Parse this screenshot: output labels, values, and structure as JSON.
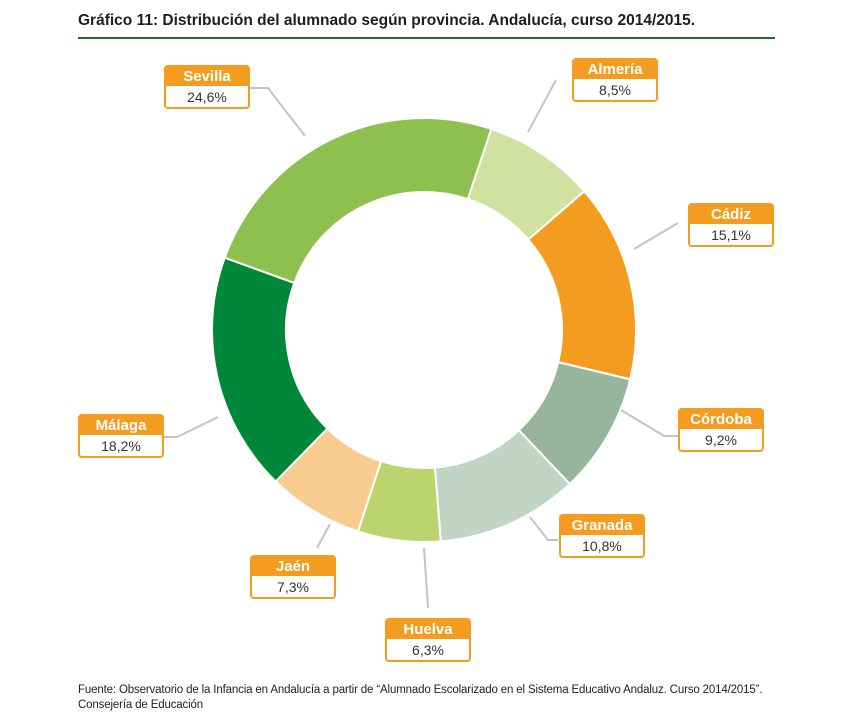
{
  "title": "Gráfico 11: Distribución del alumnado según provincia. Andalucía, curso 2014/2015.",
  "source": {
    "line1": "Fuente: Observatorio de la Infancia en Andalucía a partir de “Alumnado Escolarizado en el Sistema Educativo Andaluz. Curso 2014/2015”.",
    "line2": "Consejería de Educación"
  },
  "chart_data": {
    "type": "pie",
    "style": "donut",
    "unit": "%",
    "legend": "callout-labels",
    "slices": [
      {
        "label": "Almería",
        "value": 8.5,
        "value_label": "8,5%",
        "color": "#d0e1a0"
      },
      {
        "label": "Cádiz",
        "value": 15.1,
        "value_label": "15,1%",
        "color": "#f39c1f"
      },
      {
        "label": "Córdoba",
        "value": 9.2,
        "value_label": "9,2%",
        "color": "#97b59d"
      },
      {
        "label": "Granada",
        "value": 10.8,
        "value_label": "10,8%",
        "color": "#c0d5c6"
      },
      {
        "label": "Huelva",
        "value": 6.3,
        "value_label": "6,3%",
        "color": "#bcd46e"
      },
      {
        "label": "Jaén",
        "value": 7.3,
        "value_label": "7,3%",
        "color": "#f8cc8f"
      },
      {
        "label": "Málaga",
        "value": 18.2,
        "value_label": "18,2%",
        "color": "#00873a"
      },
      {
        "label": "Sevilla",
        "value": 24.6,
        "value_label": "24,6%",
        "color": "#8dc04e"
      }
    ],
    "label_box_color": "#f39c1f",
    "leader_line_color": "#c4c4c4"
  }
}
